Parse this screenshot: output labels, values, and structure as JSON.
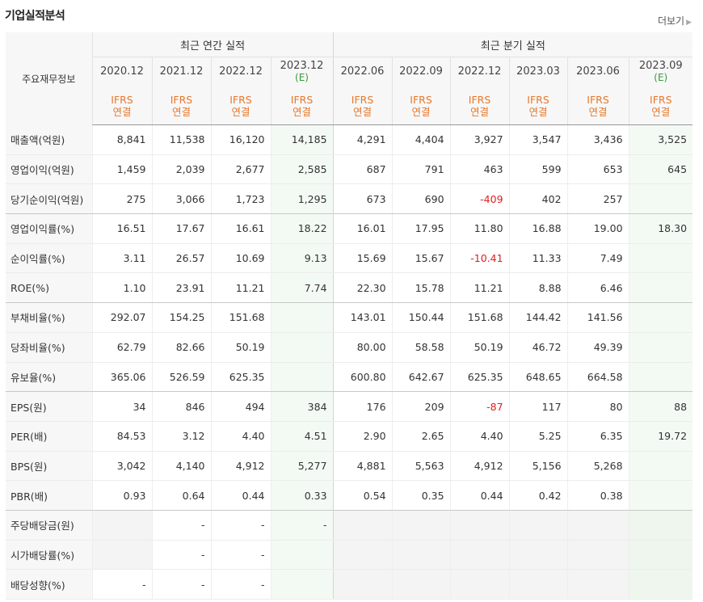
{
  "title": "기업실적분석",
  "more_label": "더보기",
  "header": {
    "row_label": "주요재무정보",
    "annual_group": "최근 연간 실적",
    "quarter_group": "최근 분기 실적",
    "periods": [
      {
        "label": "2020.12",
        "est": ""
      },
      {
        "label": "2021.12",
        "est": ""
      },
      {
        "label": "2022.12",
        "est": ""
      },
      {
        "label": "2023.12",
        "est": "(E)"
      },
      {
        "label": "2022.06",
        "est": ""
      },
      {
        "label": "2022.09",
        "est": ""
      },
      {
        "label": "2022.12",
        "est": ""
      },
      {
        "label": "2023.03",
        "est": ""
      },
      {
        "label": "2023.06",
        "est": ""
      },
      {
        "label": "2023.09",
        "est": "(E)"
      }
    ],
    "ifrs_line1": "IFRS",
    "ifrs_line2": "연결"
  },
  "rows": [
    {
      "label": "매출액(억원)",
      "values": [
        "8,841",
        "11,538",
        "16,120",
        "14,185",
        "4,291",
        "4,404",
        "3,927",
        "3,547",
        "3,436",
        "3,525"
      ]
    },
    {
      "label": "영업이익(억원)",
      "values": [
        "1,459",
        "2,039",
        "2,677",
        "2,585",
        "687",
        "791",
        "463",
        "599",
        "653",
        "645"
      ]
    },
    {
      "label": "당기순이익(억원)",
      "values": [
        "275",
        "3,066",
        "1,723",
        "1,295",
        "673",
        "690",
        "-409",
        "402",
        "257",
        ""
      ],
      "group_end": true
    },
    {
      "label": "영업이익률(%)",
      "values": [
        "16.51",
        "17.67",
        "16.61",
        "18.22",
        "16.01",
        "17.95",
        "11.80",
        "16.88",
        "19.00",
        "18.30"
      ]
    },
    {
      "label": "순이익률(%)",
      "values": [
        "3.11",
        "26.57",
        "10.69",
        "9.13",
        "15.69",
        "15.67",
        "-10.41",
        "11.33",
        "7.49",
        ""
      ]
    },
    {
      "label": "ROE(%)",
      "values": [
        "1.10",
        "23.91",
        "11.21",
        "7.74",
        "22.30",
        "15.78",
        "11.21",
        "8.88",
        "6.46",
        ""
      ],
      "group_end": true
    },
    {
      "label": "부채비율(%)",
      "values": [
        "292.07",
        "154.25",
        "151.68",
        "",
        "143.01",
        "150.44",
        "151.68",
        "144.42",
        "141.56",
        ""
      ]
    },
    {
      "label": "당좌비율(%)",
      "values": [
        "62.79",
        "82.66",
        "50.19",
        "",
        "80.00",
        "58.58",
        "50.19",
        "46.72",
        "49.39",
        ""
      ]
    },
    {
      "label": "유보율(%)",
      "values": [
        "365.06",
        "526.59",
        "625.35",
        "",
        "600.80",
        "642.67",
        "625.35",
        "648.65",
        "664.58",
        ""
      ],
      "group_end": true
    },
    {
      "label": "EPS(원)",
      "values": [
        "34",
        "846",
        "494",
        "384",
        "176",
        "209",
        "-87",
        "117",
        "80",
        "88"
      ]
    },
    {
      "label": "PER(배)",
      "values": [
        "84.53",
        "3.12",
        "4.40",
        "4.51",
        "2.90",
        "2.65",
        "4.40",
        "5.25",
        "6.35",
        "19.72"
      ]
    },
    {
      "label": "BPS(원)",
      "values": [
        "3,042",
        "4,140",
        "4,912",
        "5,277",
        "4,881",
        "5,563",
        "4,912",
        "5,156",
        "5,268",
        ""
      ]
    },
    {
      "label": "PBR(배)",
      "values": [
        "0.93",
        "0.64",
        "0.44",
        "0.33",
        "0.54",
        "0.35",
        "0.44",
        "0.42",
        "0.38",
        ""
      ],
      "group_end": true
    },
    {
      "label": "주당배당금(원)",
      "values": [
        "",
        "-",
        "-",
        "-",
        "",
        "",
        "",
        "",
        "",
        ""
      ],
      "blank": [
        0,
        4,
        5,
        6,
        7,
        8,
        9
      ]
    },
    {
      "label": "시가배당률(%)",
      "values": [
        "",
        "-",
        "-",
        "",
        "",
        "",
        "",
        "",
        "",
        ""
      ],
      "blank": [
        0,
        4,
        5,
        6,
        7,
        8,
        9
      ]
    },
    {
      "label": "배당성향(%)",
      "values": [
        "-",
        "-",
        "-",
        "",
        "",
        "",
        "",
        "",
        "",
        ""
      ],
      "blank": [
        4,
        5,
        6,
        7,
        8,
        9
      ]
    }
  ],
  "colors": {
    "negative": "#e02020",
    "ifrs": "#e8782a",
    "estimate": "#3a9a3a"
  }
}
